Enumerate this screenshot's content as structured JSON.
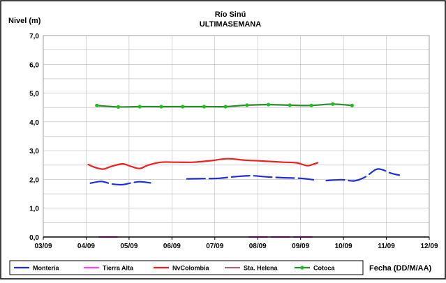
{
  "chart_data": {
    "type": "line",
    "title": "Río Sinú",
    "subtitle": "ULTIMASEMANA",
    "ylabel": "Nivel (m)",
    "xlabel": "Fecha (DD/M/AA)",
    "ylim": [
      0,
      7
    ],
    "yticks": [
      "0,0",
      "1,0",
      "2,0",
      "3,0",
      "4,0",
      "5,0",
      "6,0",
      "7,0"
    ],
    "yticks_values": [
      0,
      1,
      2,
      3,
      4,
      5,
      6,
      7
    ],
    "xlim": [
      0,
      9
    ],
    "xticks": [
      "03/09",
      "04/09",
      "05/09",
      "06/09",
      "07/09",
      "08/09",
      "09/09",
      "10/09",
      "11/09",
      "12/09"
    ],
    "grid": true,
    "legend_position": "bottom",
    "series": [
      {
        "name": "Montería",
        "color": "#1f2fd6",
        "dash": "segmented",
        "segments": [
          [
            [
              1.1,
              1.87
            ],
            [
              1.35,
              1.93
            ],
            [
              1.6,
              1.84
            ],
            [
              1.85,
              1.82
            ],
            [
              2.05,
              1.88
            ],
            [
              2.25,
              1.92
            ],
            [
              2.5,
              1.88
            ]
          ],
          [
            [
              3.35,
              2.02
            ],
            [
              3.75,
              2.03
            ],
            [
              4.1,
              2.04
            ],
            [
              4.5,
              2.1
            ],
            [
              4.85,
              2.13
            ],
            [
              5.2,
              2.09
            ],
            [
              5.6,
              2.06
            ],
            [
              6.0,
              2.04
            ],
            [
              6.3,
              1.99
            ]
          ],
          [
            [
              6.6,
              1.96
            ],
            [
              6.95,
              1.99
            ],
            [
              7.25,
              1.95
            ],
            [
              7.5,
              2.08
            ],
            [
              7.75,
              2.34
            ],
            [
              7.9,
              2.34
            ],
            [
              8.1,
              2.22
            ],
            [
              8.3,
              2.15
            ]
          ]
        ]
      },
      {
        "name": "Tierra Alta",
        "color": "#ff44ff",
        "dash": "segmented",
        "segments": [
          [
            [
              1.3,
              0.0
            ],
            [
              1.8,
              0.0
            ]
          ],
          [
            [
              4.8,
              0.0
            ],
            [
              6.3,
              0.0
            ]
          ]
        ]
      },
      {
        "name": "NvColombia",
        "color": "#ee2020",
        "dash": "solid",
        "segments": [
          [
            [
              1.05,
              2.52
            ],
            [
              1.2,
              2.42
            ],
            [
              1.4,
              2.36
            ],
            [
              1.6,
              2.46
            ],
            [
              1.85,
              2.54
            ],
            [
              2.05,
              2.45
            ],
            [
              2.25,
              2.38
            ],
            [
              2.45,
              2.5
            ],
            [
              2.75,
              2.6
            ],
            [
              3.1,
              2.6
            ],
            [
              3.5,
              2.6
            ],
            [
              3.9,
              2.65
            ],
            [
              4.3,
              2.72
            ],
            [
              4.7,
              2.67
            ],
            [
              5.1,
              2.64
            ],
            [
              5.6,
              2.6
            ],
            [
              5.9,
              2.58
            ],
            [
              6.15,
              2.48
            ],
            [
              6.3,
              2.53
            ],
            [
              6.4,
              2.58
            ]
          ]
        ]
      },
      {
        "name": "Sta. Helena",
        "color": "#9a7070",
        "dash": "solid",
        "segments": []
      },
      {
        "name": "Cotoca",
        "color": "#2b8a2b",
        "marker_color": "#22bb22",
        "dash": "solid",
        "marker": "circle",
        "segments": [
          [
            [
              1.25,
              4.57
            ],
            [
              1.75,
              4.52
            ],
            [
              2.25,
              4.53
            ],
            [
              2.75,
              4.53
            ],
            [
              3.25,
              4.53
            ],
            [
              3.75,
              4.53
            ],
            [
              4.25,
              4.53
            ],
            [
              4.75,
              4.58
            ],
            [
              5.25,
              4.6
            ],
            [
              5.75,
              4.58
            ],
            [
              6.25,
              4.57
            ],
            [
              6.75,
              4.62
            ],
            [
              7.2,
              4.57
            ]
          ]
        ]
      }
    ]
  }
}
